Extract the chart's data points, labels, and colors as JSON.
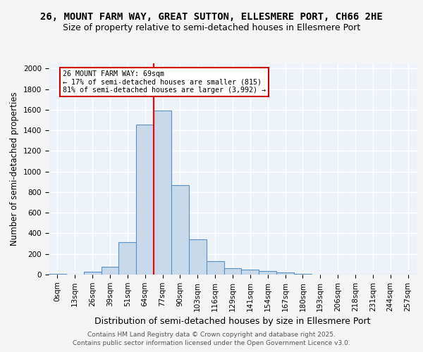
{
  "title1": "26, MOUNT FARM WAY, GREAT SUTTON, ELLESMERE PORT, CH66 2HE",
  "title2": "Size of property relative to semi-detached houses in Ellesmere Port",
  "xlabel": "Distribution of semi-detached houses by size in Ellesmere Port",
  "ylabel": "Number of semi-detached properties",
  "footer1": "Contains HM Land Registry data © Crown copyright and database right 2025.",
  "footer2": "Contains public sector information licensed under the Open Government Licence v3.0.",
  "bin_labels": [
    "0sqm",
    "13sqm",
    "26sqm",
    "39sqm",
    "51sqm",
    "64sqm",
    "77sqm",
    "90sqm",
    "103sqm",
    "116sqm",
    "129sqm",
    "141sqm",
    "154sqm",
    "167sqm",
    "180sqm",
    "193sqm",
    "206sqm",
    "218sqm",
    "231sqm",
    "244sqm",
    "257sqm"
  ],
  "bin_values": [
    10,
    0,
    30,
    75,
    315,
    1455,
    1590,
    870,
    340,
    130,
    60,
    50,
    35,
    18,
    5,
    0,
    0,
    0,
    0,
    0,
    0
  ],
  "bar_color": "#c9d9ec",
  "bar_edge_color": "#5a8fc3",
  "property_bin_index": 5,
  "annotation_text": "26 MOUNT FARM WAY: 69sqm\n← 17% of semi-detached houses are smaller (815)\n81% of semi-detached houses are larger (3,992) →",
  "annotation_box_color": "#ffffff",
  "annotation_box_edge_color": "#cc0000",
  "ylim": [
    0,
    2050
  ],
  "yticks": [
    0,
    200,
    400,
    600,
    800,
    1000,
    1200,
    1400,
    1600,
    1800,
    2000
  ],
  "bg_color": "#eef2f9",
  "grid_color": "#ffffff",
  "title1_fontsize": 10,
  "title2_fontsize": 9,
  "xlabel_fontsize": 9,
  "ylabel_fontsize": 8.5,
  "tick_fontsize": 7.5,
  "footer_fontsize": 6.5
}
